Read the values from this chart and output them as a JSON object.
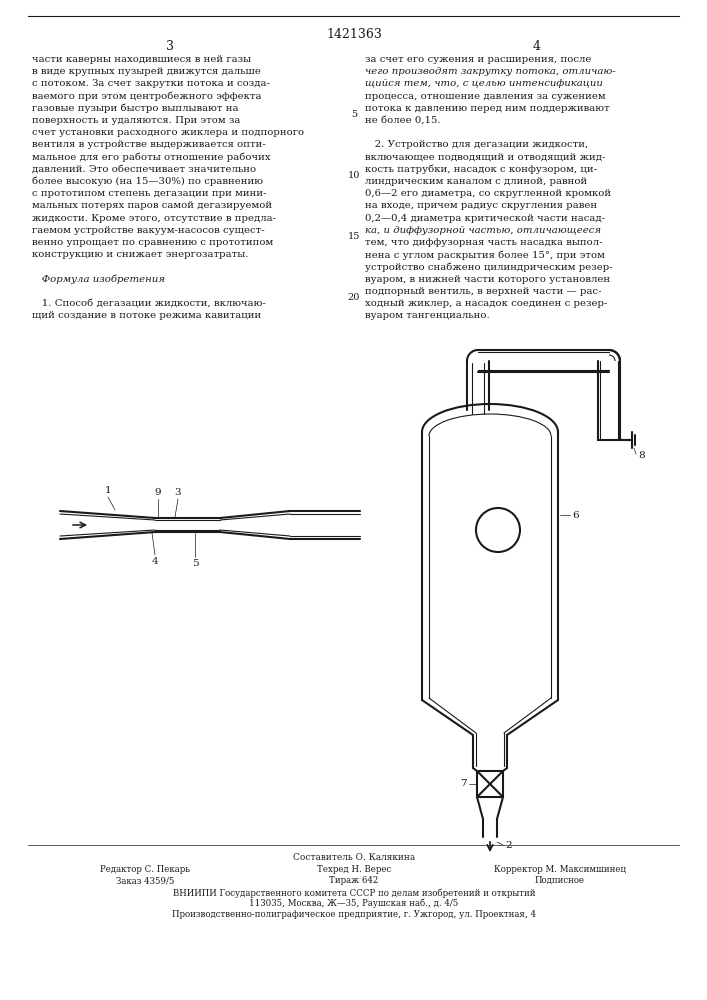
{
  "patent_number": "1421363",
  "page_left": "3",
  "page_right": "4",
  "background_color": "#ffffff",
  "text_color": "#1a1a1a",
  "left_col_lines": [
    "части каверны находившиеся в ней газы",
    "в виде крупных пузырей движутся дальше",
    "с потоком. За счет закрутки потока и созда-",
    "ваемого при этом центробежного эффекта",
    "газовые пузыри быстро выплывают на",
    "поверхность и удаляются. При этом за",
    "счет установки расходного жиклера и подпорного",
    "вентиля в устройстве выдерживается опти-",
    "мальное для его работы отношение рабочих",
    "давлений. Это обеспечивает значительно",
    "более высокую (на 15—30%) по сравнению",
    "с прототипом степень дегазации при мини-",
    "мальных потерях паров самой дегазируемой",
    "жидкости. Кроме этого, отсутствие в предла-",
    "гаемом устройстве вакуум-насосов сущест-",
    "венно упрощает по сравнению с прототипом",
    "конструкцию и снижает энергозатраты.",
    "",
    "   Формула изобретения",
    "",
    "   1. Способ дегазации жидкости, включаю-",
    "щий создание в потоке режима кавитации"
  ],
  "left_col_italic": [
    false,
    false,
    false,
    false,
    false,
    false,
    false,
    false,
    false,
    false,
    false,
    false,
    false,
    false,
    false,
    false,
    false,
    false,
    true,
    false,
    false,
    false
  ],
  "right_col_lines": [
    "за счет его сужения и расширения, после",
    "чего производят закрутку потока, отличаю-",
    "щийся тем, что, с целью интенсификации",
    "процесса, отношение давления за сужением",
    "потока к давлению перед ним поддерживают",
    "не более 0,15.",
    "",
    "   2. Устройство для дегазации жидкости,",
    "включающее подводящий и отводящий жид-",
    "кость патрубки, насадок с конфузором, ци-",
    "линдрическим каналом с длиной, равной",
    "0,6—2 его диаметра, со скругленной кромкой",
    "на входе, причем радиус скругления равен",
    "0,2—0,4 диаметра критической части насад-",
    "ка, и диффузорной частью, отличающееся",
    "тем, что диффузорная часть насадка выпол-",
    "нена с углом раскрытия более 15°, при этом",
    "устройство снабжено цилиндрическим резер-",
    "вуаром, в нижней части которого установлен",
    "подпорный вентиль, в верхней части — рас-",
    "ходный жиклер, а насадок соединен с резер-",
    "вуаром тангенциально."
  ],
  "right_col_italic": [
    false,
    true,
    true,
    false,
    false,
    false,
    false,
    false,
    false,
    false,
    false,
    false,
    false,
    false,
    true,
    false,
    false,
    false,
    false,
    false,
    false,
    false
  ],
  "footer_col1": [
    "Редактор С. Пекарь",
    "Заказ 4359/5"
  ],
  "footer_col2": [
    "Техред Н. Верес",
    "Тираж 642"
  ],
  "footer_col3": [
    "Корректор М. Максимшинец",
    "Подписное"
  ],
  "footer_composer": "Составитель О. Калякина",
  "footer_vniiipi": "ВНИИПИ Государственного комитета СССР по делам изобретений и открытий",
  "footer_addr1": "113035, Москва, Ж—35, Раушская наб., д. 4/5",
  "footer_addr2": "Производственно-полиграфическое предприятие, г. Ужгород, ул. Проектная, 4"
}
